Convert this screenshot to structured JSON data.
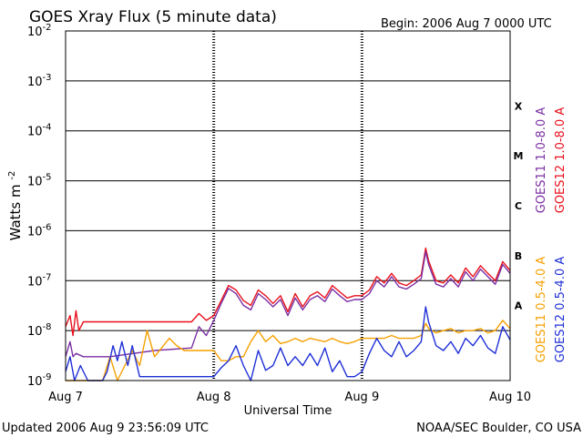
{
  "chart_data": {
    "type": "line",
    "title": "GOES Xray Flux (5 minute data)",
    "begin_label": "Begin:  2006 Aug 7 0000 UTC",
    "ylabel_main": "Watts m",
    "ylabel_sup": "-2",
    "xlabel": "Universal Time",
    "yscale": "log",
    "ylim": [
      1e-09,
      0.01
    ],
    "xlim": [
      0,
      3
    ],
    "x_unit": "days since 2006 Aug 7 0000 UTC",
    "yticks": [
      {
        "base": "10",
        "exp": "-2"
      },
      {
        "base": "10",
        "exp": "-3"
      },
      {
        "base": "10",
        "exp": "-4"
      },
      {
        "base": "10",
        "exp": "-5"
      },
      {
        "base": "10",
        "exp": "-6"
      },
      {
        "base": "10",
        "exp": "-7"
      },
      {
        "base": "10",
        "exp": "-8"
      },
      {
        "base": "10",
        "exp": "-9"
      }
    ],
    "xticks": [
      "Aug 7",
      "Aug 8",
      "Aug 9",
      "Aug 10"
    ],
    "flare_classes": [
      "X",
      "M",
      "C",
      "B",
      "A"
    ],
    "legend_right": [
      {
        "label": "GOES11 1.0-8.0 A",
        "color": "#7b2fa3"
      },
      {
        "label": "GOES12 1.0-8.0 A",
        "color": "#e8101c"
      },
      {
        "label": "GOES11 0.5-4.0 A",
        "color": "#f5a000"
      },
      {
        "label": "GOES12 0.5-4.0 A",
        "color": "#1f2fd6"
      }
    ],
    "series": [
      {
        "name": "GOES12 1.0-8.0 A",
        "color": "#e8101c",
        "x": [
          0,
          0.03,
          0.05,
          0.07,
          0.09,
          0.12,
          0.3,
          0.6,
          0.85,
          0.9,
          0.95,
          1.0,
          1.05,
          1.1,
          1.15,
          1.2,
          1.25,
          1.3,
          1.35,
          1.4,
          1.45,
          1.5,
          1.55,
          1.6,
          1.65,
          1.7,
          1.75,
          1.8,
          1.85,
          1.9,
          1.95,
          2.0,
          2.05,
          2.1,
          2.15,
          2.2,
          2.25,
          2.3,
          2.35,
          2.4,
          2.43,
          2.45,
          2.5,
          2.55,
          2.6,
          2.65,
          2.7,
          2.75,
          2.8,
          2.85,
          2.9,
          2.95,
          3.0
        ],
        "y": [
          1.2e-08,
          2e-08,
          8e-09,
          2.5e-08,
          1e-08,
          1.5e-08,
          1.5e-08,
          1.5e-08,
          1.5e-08,
          2.2e-08,
          1.6e-08,
          2e-08,
          4e-08,
          8e-08,
          6.5e-08,
          4e-08,
          3.2e-08,
          6.5e-08,
          5e-08,
          3.5e-08,
          5e-08,
          2.4e-08,
          5.5e-08,
          3e-08,
          5e-08,
          6e-08,
          4.5e-08,
          8e-08,
          6e-08,
          4.5e-08,
          5e-08,
          5e-08,
          6.5e-08,
          1.2e-07,
          9e-08,
          1.4e-07,
          9e-08,
          8e-08,
          1e-07,
          1.3e-07,
          4.5e-07,
          2.5e-07,
          1e-07,
          9e-08,
          1.3e-07,
          9e-08,
          1.8e-07,
          1.2e-07,
          2e-07,
          1.4e-07,
          1e-07,
          2.4e-07,
          1.6e-07
        ]
      },
      {
        "name": "GOES11 1.0-8.0 A",
        "color": "#7b2fa3",
        "x": [
          0,
          0.03,
          0.05,
          0.07,
          0.12,
          0.3,
          0.6,
          0.85,
          0.9,
          0.95,
          1.0,
          1.05,
          1.1,
          1.15,
          1.2,
          1.25,
          1.3,
          1.35,
          1.4,
          1.45,
          1.5,
          1.55,
          1.6,
          1.65,
          1.7,
          1.75,
          1.8,
          1.85,
          1.9,
          1.95,
          2.0,
          2.05,
          2.1,
          2.15,
          2.2,
          2.25,
          2.3,
          2.35,
          2.4,
          2.43,
          2.45,
          2.5,
          2.55,
          2.6,
          2.65,
          2.7,
          2.75,
          2.8,
          2.85,
          2.9,
          2.95,
          3.0
        ],
        "y": [
          3e-09,
          6e-09,
          3e-09,
          3.5e-09,
          3e-09,
          3e-09,
          4e-09,
          4.5e-09,
          1.2e-08,
          8e-09,
          1.6e-08,
          3.5e-08,
          7e-08,
          5.5e-08,
          3.2e-08,
          2.6e-08,
          5.5e-08,
          4.2e-08,
          3e-08,
          4.2e-08,
          2e-08,
          4.5e-08,
          2.6e-08,
          4.2e-08,
          5e-08,
          3.8e-08,
          6.8e-08,
          5e-08,
          3.8e-08,
          4.2e-08,
          4.2e-08,
          5.5e-08,
          1e-07,
          7.5e-08,
          1.2e-07,
          7.5e-08,
          6.8e-08,
          8.5e-08,
          1.1e-07,
          3.8e-07,
          2.1e-07,
          8.5e-08,
          7.5e-08,
          1.1e-07,
          7.5e-08,
          1.5e-07,
          1e-07,
          1.7e-07,
          1.2e-07,
          8.5e-08,
          2.1e-07,
          1.4e-07
        ]
      },
      {
        "name": "GOES11 0.5-4.0 A",
        "color": "#f5a000",
        "x": [
          0,
          0.08,
          0.25,
          0.3,
          0.35,
          0.45,
          0.5,
          0.55,
          0.6,
          0.7,
          0.75,
          0.8,
          1.0,
          1.05,
          1.1,
          1.15,
          1.2,
          1.25,
          1.3,
          1.35,
          1.4,
          1.45,
          1.5,
          1.55,
          1.6,
          1.65,
          1.7,
          1.75,
          1.8,
          1.85,
          1.9,
          1.95,
          2.0,
          2.05,
          2.1,
          2.15,
          2.2,
          2.25,
          2.3,
          2.35,
          2.4,
          2.43,
          2.45,
          2.5,
          2.55,
          2.6,
          2.65,
          2.7,
          2.75,
          2.8,
          2.85,
          2.9,
          2.95,
          3.0
        ],
        "y": [
          1e-09,
          1e-09,
          1e-09,
          3e-09,
          1e-09,
          4e-09,
          2e-09,
          1e-08,
          3e-09,
          7e-09,
          5e-09,
          4e-09,
          4e-09,
          2.5e-09,
          2.5e-09,
          3e-09,
          3e-09,
          6e-09,
          1e-08,
          6e-09,
          8e-09,
          5.5e-09,
          6e-09,
          7e-09,
          6e-09,
          7e-09,
          6.5e-09,
          6e-09,
          7e-09,
          6e-09,
          5.5e-09,
          6e-09,
          7e-09,
          7e-09,
          7e-09,
          7e-09,
          8e-09,
          7e-09,
          7e-09,
          7e-09,
          8e-09,
          1.4e-08,
          1.1e-08,
          9e-09,
          1e-08,
          1.1e-08,
          9e-09,
          1e-08,
          1e-08,
          1.1e-08,
          9e-09,
          1e-08,
          1.6e-08,
          1.1e-08
        ]
      },
      {
        "name": "GOES12 0.5-4.0 A",
        "color": "#1f2fd6",
        "x": [
          0,
          0.03,
          0.06,
          0.1,
          0.15,
          0.2,
          0.25,
          0.28,
          0.32,
          0.35,
          0.38,
          0.42,
          0.45,
          0.5,
          0.55,
          0.6,
          0.65,
          0.7,
          0.8,
          0.9,
          1.0,
          1.05,
          1.1,
          1.15,
          1.2,
          1.25,
          1.3,
          1.35,
          1.4,
          1.45,
          1.5,
          1.55,
          1.6,
          1.65,
          1.7,
          1.75,
          1.8,
          1.85,
          1.9,
          1.95,
          2.0,
          2.05,
          2.1,
          2.15,
          2.2,
          2.25,
          2.3,
          2.35,
          2.4,
          2.43,
          2.45,
          2.5,
          2.55,
          2.6,
          2.65,
          2.7,
          2.75,
          2.8,
          2.85,
          2.9,
          2.95,
          3.0
        ],
        "y": [
          1.5e-09,
          3e-09,
          1e-09,
          2e-09,
          1e-09,
          1e-09,
          1e-09,
          1.5e-09,
          5e-09,
          2.5e-09,
          6e-09,
          2e-09,
          5e-09,
          1.2e-09,
          1.2e-09,
          1.2e-09,
          1.2e-09,
          1.2e-09,
          1.2e-09,
          1.2e-09,
          1.2e-09,
          1.8e-09,
          2.5e-09,
          5e-09,
          2e-09,
          1e-09,
          4e-09,
          1.6e-09,
          2e-09,
          4.5e-09,
          2e-09,
          3e-09,
          2e-09,
          3.5e-09,
          2e-09,
          4.5e-09,
          1.5e-09,
          2.5e-09,
          1.2e-09,
          1.2e-09,
          1.5e-09,
          3.5e-09,
          7e-09,
          4e-09,
          3e-09,
          6e-09,
          3e-09,
          4e-09,
          6e-09,
          3e-08,
          1.5e-08,
          5e-09,
          4e-09,
          6e-09,
          3.5e-09,
          7e-09,
          5e-09,
          8e-09,
          4.5e-09,
          3.5e-09,
          1.2e-08,
          6.5e-09
        ]
      }
    ]
  },
  "footer": {
    "updated": "Updated 2006 Aug  9 23:56:09 UTC",
    "credit": "NOAA/SEC Boulder, CO USA"
  }
}
